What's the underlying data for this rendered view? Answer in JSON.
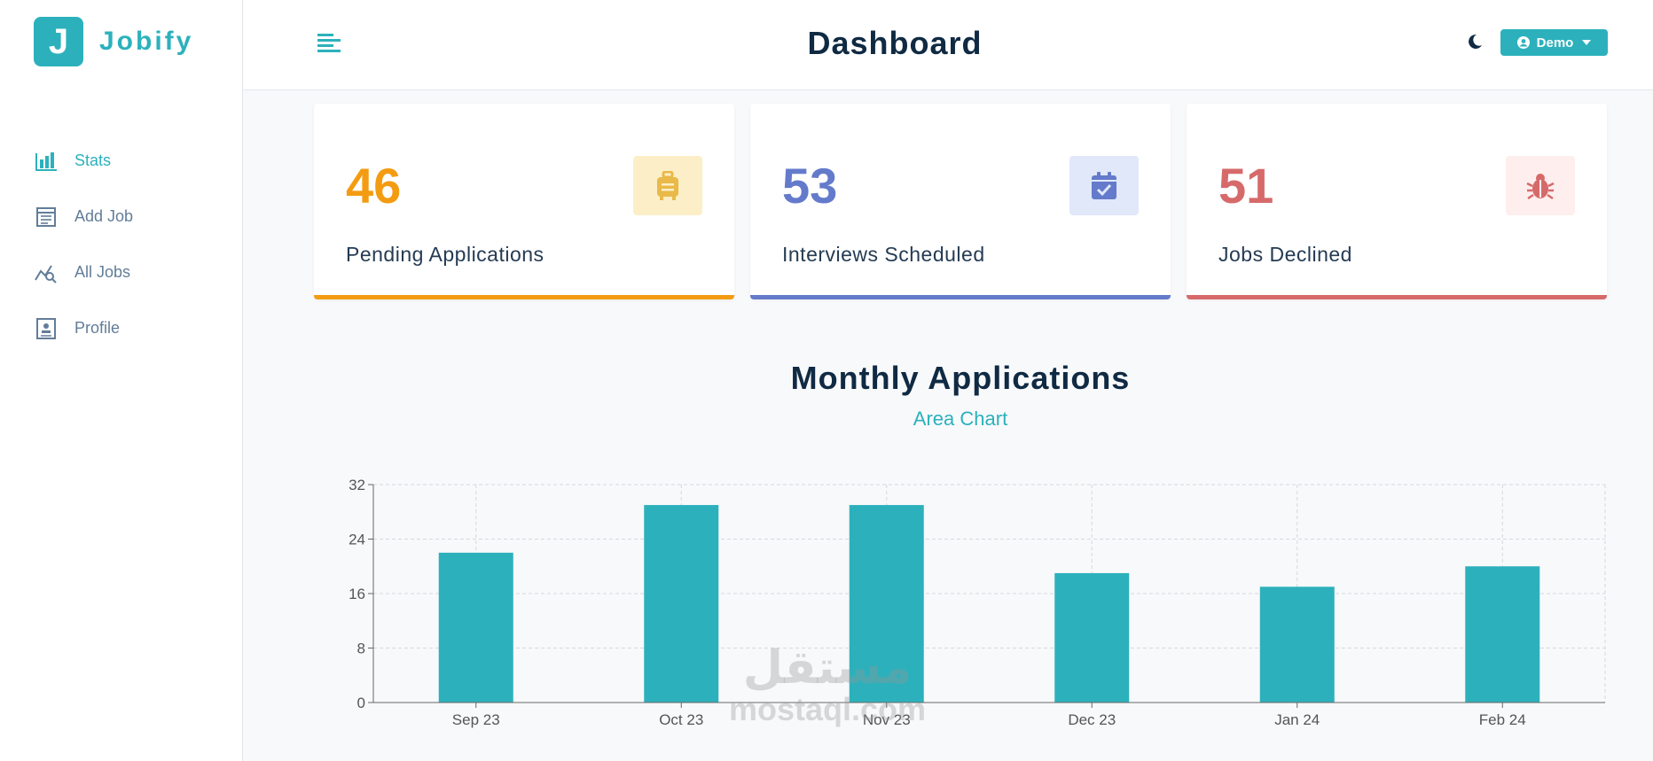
{
  "brand": {
    "letter": "J",
    "name": "Jobify"
  },
  "sidebar": {
    "items": [
      {
        "label": "Stats",
        "icon": "stats-icon",
        "active": true
      },
      {
        "label": "Add Job",
        "icon": "add-job-icon",
        "active": false
      },
      {
        "label": "All Jobs",
        "icon": "all-jobs-icon",
        "active": false
      },
      {
        "label": "Profile",
        "icon": "profile-icon",
        "active": false
      }
    ]
  },
  "header": {
    "title": "Dashboard",
    "user_label": "Demo"
  },
  "stats": [
    {
      "count": "46",
      "label": "Pending Applications",
      "color": "#e9b949",
      "icon": "suitcase-icon"
    },
    {
      "count": "53",
      "label": "Interviews Scheduled",
      "color": "#647acb",
      "icon": "calendar-check-icon"
    },
    {
      "count": "51",
      "label": "Jobs Declined",
      "color": "#d66a6a",
      "icon": "bug-icon"
    }
  ],
  "chart_section": {
    "title": "Monthly Applications",
    "toggle_label": "Area Chart"
  },
  "watermark": {
    "arabic": "مستقل",
    "latin": "mostaql.com"
  },
  "colors": {
    "primary": "#2cb1bc",
    "pending": "#f39c12",
    "interview": "#647acb",
    "declined": "#d66a6a"
  },
  "chart_data": {
    "type": "bar",
    "categories": [
      "Sep 23",
      "Oct 23",
      "Nov 23",
      "Dec 23",
      "Jan 24",
      "Feb 24"
    ],
    "values": [
      22,
      29,
      29,
      19,
      17,
      20
    ],
    "yticks": [
      0,
      8,
      16,
      24,
      32
    ],
    "ylim": [
      0,
      32
    ],
    "grid": true,
    "color": "#2cb1bc"
  }
}
